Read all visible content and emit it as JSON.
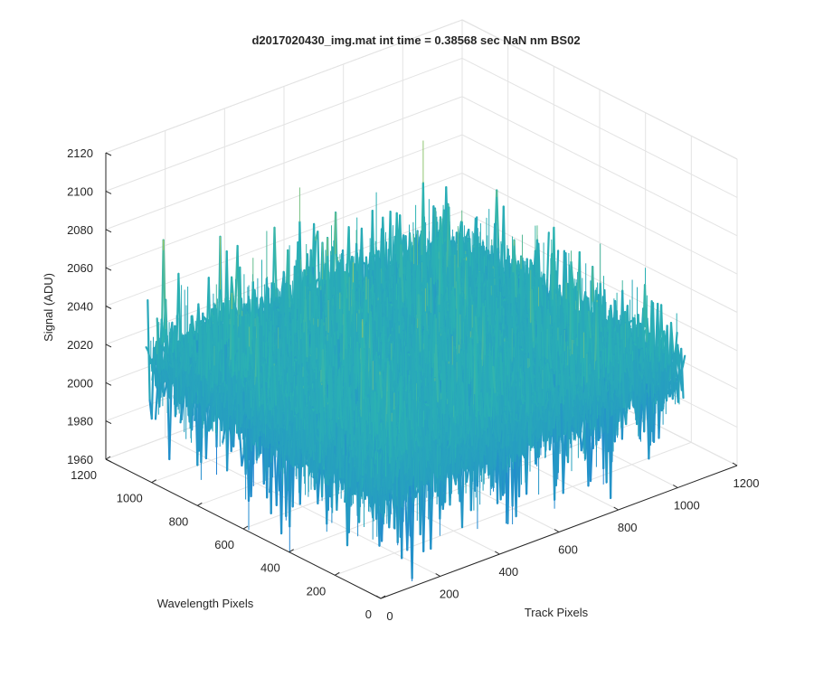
{
  "chart_data": {
    "type": "surface",
    "title": "d2017020430_img.mat int time = 0.38568 sec  NaN nm BS02",
    "xlabel": "Track Pixels",
    "ylabel": "Wavelength Pixels",
    "zlabel": "Signal (ADU)",
    "xlim": [
      0,
      1200
    ],
    "ylim": [
      0,
      1200
    ],
    "zlim": [
      1960,
      2120
    ],
    "xticks": [
      "0",
      "200",
      "400",
      "600",
      "800",
      "1000",
      "1200"
    ],
    "yticks": [
      "0",
      "200",
      "400",
      "600",
      "800",
      "1000",
      "1200"
    ],
    "zticks": [
      "1960",
      "1980",
      "2000",
      "2020",
      "2040",
      "2060",
      "2080",
      "2100",
      "2120"
    ],
    "data_extent": {
      "x": [
        0,
        1024
      ],
      "y": [
        0,
        1024
      ]
    },
    "signal_mean": 2020,
    "signal_range": [
      1965,
      2110
    ],
    "grid": true,
    "colormap": "parula",
    "colors": {
      "low": "#1f7fd6",
      "mid": "#2bb3b2",
      "high": "#e3d33a",
      "axis": "#262626",
      "grid": "#e3e3e3",
      "box": "#d9d9d9"
    }
  }
}
